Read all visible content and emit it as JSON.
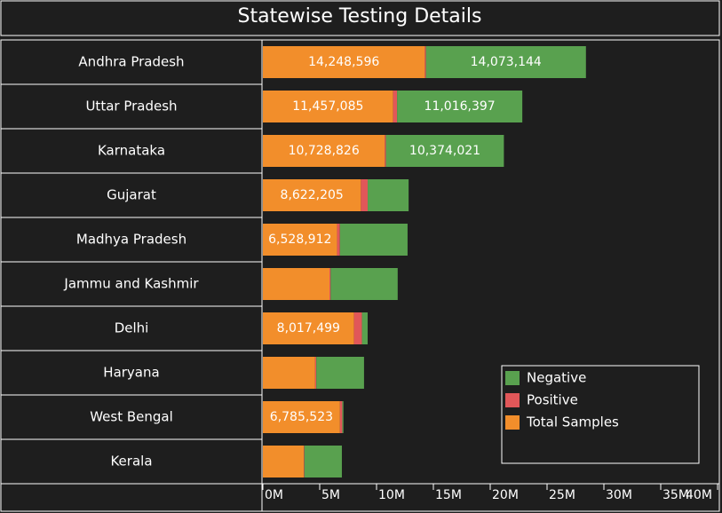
{
  "chart_data": {
    "type": "stacked-bar-horizontal",
    "title": "Statewise Testing Details",
    "categories": [
      "Andhra Pradesh",
      "Uttar Pradesh",
      "Karnataka",
      "Gujarat",
      "Madhya Pradesh",
      "Jammu and Kashmir",
      "Delhi",
      "Haryana",
      "West Bengal",
      "Kerala"
    ],
    "series": [
      {
        "name": "Total Samples",
        "color": "#f28e2b",
        "values": [
          14248596,
          11457085,
          10728826,
          8622205,
          6528912,
          5860000,
          8017499,
          4600000,
          6785523,
          3600000
        ],
        "value_labels": [
          "14,248,596",
          "11,457,085",
          "10,728,826",
          "8,622,205",
          "6,528,912",
          null,
          "8,017,499",
          null,
          "6,785,523",
          null
        ]
      },
      {
        "name": "Positive",
        "color": "#e15759",
        "values": [
          100000,
          350000,
          100000,
          600000,
          250000,
          100000,
          700000,
          100000,
          200000,
          50000
        ]
      },
      {
        "name": "Negative",
        "color": "#59a14f",
        "values": [
          14073144,
          11016397,
          10374021,
          3600000,
          5950000,
          5900000,
          500000,
          4200000,
          100000,
          3300000
        ],
        "value_labels": [
          "14,073,144",
          "11,016,397",
          "10,374,021",
          null,
          null,
          null,
          null,
          null,
          null,
          null
        ]
      }
    ],
    "xlim": [
      0,
      40000000
    ],
    "xticks": [
      {
        "value": 0,
        "label": "0M"
      },
      {
        "value": 5000000,
        "label": "5M"
      },
      {
        "value": 10000000,
        "label": "10M"
      },
      {
        "value": 15000000,
        "label": "15M"
      },
      {
        "value": 20000000,
        "label": "20M"
      },
      {
        "value": 25000000,
        "label": "25M"
      },
      {
        "value": 30000000,
        "label": "30M"
      },
      {
        "value": 35000000,
        "label": "35M"
      },
      {
        "value": 40000000,
        "label": "40M"
      }
    ],
    "legend": "bottom-right"
  }
}
